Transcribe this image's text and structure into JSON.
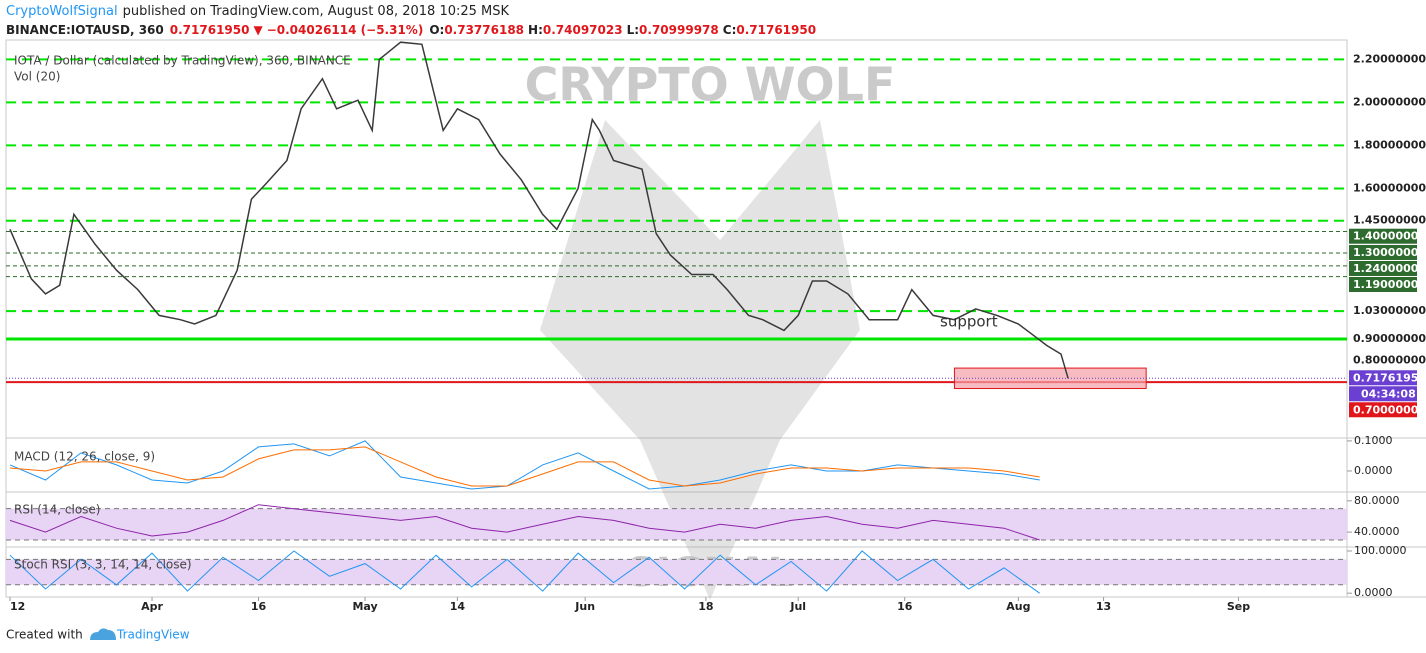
{
  "header": {
    "author": "CryptoWolfSignal",
    "published": "published on TradingView.com, August 08, 2018 10:25 MSK"
  },
  "symbol_info": {
    "symbol": "BINANCE:IOTAUSD, 360",
    "last": "0.71761950",
    "arrow": "▼",
    "change": "−0.04026114 (−5.31%)",
    "o_label": "O:",
    "o": "0.73776188",
    "h_label": "H:",
    "h": "0.74097023",
    "l_label": "L:",
    "l": "0.70999978",
    "c_label": "C:",
    "c": "0.71761950"
  },
  "chart_data": [
    {
      "type": "line",
      "title": "IOTA / Dollar (calculated by TradingView), 360, BINANCE",
      "subtitle": "Vol (20)",
      "x": [
        0,
        3,
        5,
        7,
        9,
        12,
        15,
        18,
        21,
        24,
        26,
        29,
        32,
        34,
        36,
        39,
        41,
        44,
        46,
        49,
        51,
        52,
        55,
        58,
        61,
        63,
        66,
        69,
        72,
        75,
        77,
        80,
        82,
        83,
        85,
        89,
        91,
        93,
        96,
        99,
        101,
        104,
        106,
        109,
        111,
        113,
        115,
        118,
        121,
        125,
        127,
        130,
        133,
        136,
        139,
        142,
        144,
        146,
        148,
        149
      ],
      "values": [
        1.41,
        1.18,
        1.11,
        1.15,
        1.48,
        1.34,
        1.22,
        1.13,
        1.01,
        0.99,
        0.97,
        1.01,
        1.22,
        1.55,
        1.62,
        1.73,
        1.97,
        2.11,
        1.97,
        2.01,
        1.87,
        2.2,
        2.28,
        2.27,
        1.87,
        1.97,
        1.92,
        1.76,
        1.64,
        1.48,
        1.41,
        1.6,
        1.92,
        1.87,
        1.73,
        1.69,
        1.39,
        1.29,
        1.2,
        1.2,
        1.13,
        1.01,
        0.99,
        0.94,
        1.01,
        1.17,
        1.17,
        1.11,
        0.99,
        0.99,
        1.13,
        1.01,
        0.99,
        1.04,
        1.01,
        0.97,
        0.92,
        0.87,
        0.83,
        0.7176195
      ],
      "color": "#3a3a3a",
      "xlim": [
        0,
        188
      ],
      "ylim": [
        0.44,
        2.29
      ],
      "xticks": [
        {
          "value": 0,
          "label": "12"
        },
        {
          "value": 20,
          "label": "Apr"
        },
        {
          "value": 35,
          "label": "16"
        },
        {
          "value": 50,
          "label": "May"
        },
        {
          "value": 63,
          "label": "14"
        },
        {
          "value": 81,
          "label": "Jun"
        },
        {
          "value": 98,
          "label": "18"
        },
        {
          "value": 111,
          "label": "Jul"
        },
        {
          "value": 126,
          "label": "16"
        },
        {
          "value": 142,
          "label": "Aug"
        },
        {
          "value": 154,
          "label": "13"
        },
        {
          "value": 173,
          "label": "Sep"
        }
      ],
      "yticks": [
        {
          "value": 2.2,
          "label": "2.20000000"
        },
        {
          "value": 2.0,
          "label": "2.00000000"
        },
        {
          "value": 1.8,
          "label": "1.80000000"
        },
        {
          "value": 1.6,
          "label": "1.60000000"
        },
        {
          "value": 1.45,
          "label": "1.45000000"
        },
        {
          "value": 1.4,
          "label": "1.40000000"
        },
        {
          "value": 1.3,
          "label": "1.30000000"
        },
        {
          "value": 1.24,
          "label": "1.24000000"
        },
        {
          "value": 1.19,
          "label": "1.19000000"
        },
        {
          "value": 1.03,
          "label": "1.03000000"
        },
        {
          "value": 0.9,
          "label": "0.90000000"
        },
        {
          "value": 0.8,
          "label": "0.80000000"
        },
        {
          "value": 0.7,
          "label": "0.70000000"
        }
      ],
      "levels": [
        {
          "value": 2.2,
          "style": "dashed",
          "color": "#00e600"
        },
        {
          "value": 2.0,
          "style": "dashed",
          "color": "#00e600"
        },
        {
          "value": 1.8,
          "style": "dashed",
          "color": "#00e600"
        },
        {
          "value": 1.6,
          "style": "dashed",
          "color": "#00e600"
        },
        {
          "value": 1.45,
          "style": "dashed",
          "color": "#00e600"
        },
        {
          "value": 1.4,
          "style": "thin",
          "color": "#2e6b2e"
        },
        {
          "value": 1.3,
          "style": "thin",
          "color": "#2e6b2e"
        },
        {
          "value": 1.24,
          "style": "thin",
          "color": "#2e6b2e"
        },
        {
          "value": 1.19,
          "style": "thin",
          "color": "#2e6b2e"
        },
        {
          "value": 1.03,
          "style": "dashed",
          "color": "#00e600"
        },
        {
          "value": 0.9,
          "style": "solid",
          "color": "#00e600"
        },
        {
          "value": 0.7,
          "style": "solid",
          "color": "#e0161b"
        }
      ],
      "last_price": {
        "value": 0.7176195,
        "label": "0.71761950",
        "countdown": "04:34:08",
        "color": "#6a3fd1"
      },
      "annotation": "support",
      "zone": {
        "x": [
          133,
          160
        ],
        "y": [
          0.67,
          0.765
        ],
        "color": "#f4a0a6"
      },
      "watermark": [
        "CRYPTO WOLF",
        "SIGNAL"
      ]
    },
    {
      "type": "line",
      "title": "MACD (12, 26, close, 9)",
      "x": [
        0,
        5,
        10,
        15,
        20,
        25,
        30,
        35,
        40,
        45,
        50,
        55,
        60,
        65,
        70,
        75,
        80,
        85,
        90,
        95,
        100,
        105,
        110,
        115,
        120,
        125,
        130,
        135,
        140,
        145
      ],
      "series": [
        {
          "color": "#2196f3",
          "values": [
            0.02,
            -0.03,
            0.06,
            0.02,
            -0.03,
            -0.04,
            0.0,
            0.08,
            0.09,
            0.05,
            0.1,
            -0.02,
            -0.04,
            -0.06,
            -0.05,
            0.02,
            0.06,
            0.0,
            -0.06,
            -0.05,
            -0.03,
            0.0,
            0.02,
            0.0,
            0.0,
            0.02,
            0.01,
            0.0,
            -0.01,
            -0.03
          ]
        },
        {
          "color": "#ff6d00",
          "values": [
            0.01,
            0.0,
            0.03,
            0.03,
            0.0,
            -0.03,
            -0.02,
            0.04,
            0.07,
            0.07,
            0.08,
            0.03,
            -0.02,
            -0.05,
            -0.05,
            -0.01,
            0.03,
            0.03,
            -0.03,
            -0.05,
            -0.04,
            -0.01,
            0.01,
            0.01,
            0.0,
            0.01,
            0.01,
            0.01,
            0.0,
            -0.02
          ]
        }
      ],
      "xlim": [
        0,
        188
      ],
      "ylim": [
        -0.07,
        0.103
      ],
      "yticks": [
        {
          "value": 0.1,
          "label": "0.1000"
        },
        {
          "value": 0,
          "label": "0.0000"
        }
      ]
    },
    {
      "type": "line",
      "title": "RSI (14, close)",
      "x": [
        0,
        5,
        10,
        15,
        20,
        25,
        30,
        35,
        40,
        45,
        50,
        55,
        60,
        65,
        70,
        75,
        80,
        85,
        90,
        95,
        100,
        105,
        110,
        115,
        120,
        125,
        130,
        135,
        140,
        145
      ],
      "series": [
        {
          "color": "#8e24aa",
          "values": [
            55,
            40,
            60,
            45,
            35,
            40,
            55,
            75,
            70,
            65,
            60,
            55,
            60,
            45,
            40,
            50,
            60,
            55,
            45,
            40,
            50,
            45,
            55,
            60,
            50,
            45,
            55,
            50,
            45,
            30
          ]
        }
      ],
      "band": [
        30,
        70
      ],
      "band_color": "#e8d4f5",
      "xlim": [
        0,
        188
      ],
      "ylim": [
        21,
        90
      ],
      "yticks": [
        {
          "value": 80,
          "label": "80.0000"
        },
        {
          "value": 40,
          "label": "40.0000"
        }
      ]
    },
    {
      "type": "line",
      "title": "Stoch RSI (3, 3, 14, 14, close)",
      "x": [
        0,
        5,
        10,
        15,
        20,
        25,
        30,
        35,
        40,
        45,
        50,
        55,
        60,
        65,
        70,
        75,
        80,
        85,
        90,
        95,
        100,
        105,
        110,
        115,
        120,
        125,
        130,
        135,
        140,
        145
      ],
      "series": [
        {
          "color": "#2196f3",
          "values": [
            90,
            10,
            80,
            20,
            95,
            5,
            85,
            30,
            100,
            40,
            70,
            10,
            90,
            15,
            80,
            5,
            95,
            25,
            85,
            10,
            90,
            20,
            75,
            5,
            100,
            30,
            80,
            10,
            60,
            0
          ]
        }
      ],
      "band": [
        20,
        80
      ],
      "band_color": "#e8d4f5",
      "xlim": [
        0,
        188
      ],
      "ylim": [
        -9,
        107
      ],
      "yticks": [
        {
          "value": 100,
          "label": "100.0000"
        },
        {
          "value": 0,
          "label": "0.0000"
        }
      ]
    }
  ],
  "footer": {
    "created": "Created with",
    "brand": "TradingView"
  }
}
